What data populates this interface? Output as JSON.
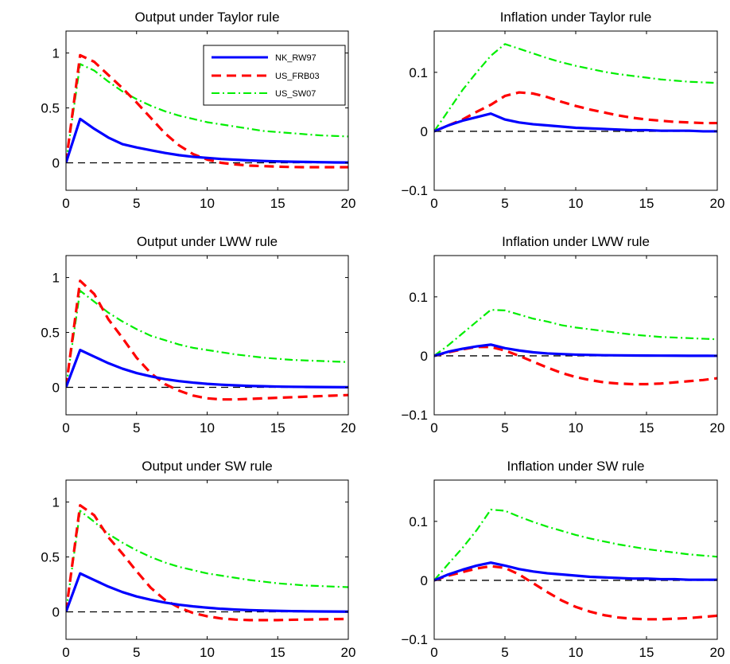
{
  "legend": {
    "position": "top-right of top-left panel",
    "entries": [
      {
        "name": "NK_RW97",
        "color": "#0000ff",
        "style": "solid"
      },
      {
        "name": "US_FRB03",
        "color": "#ff0000",
        "style": "dashed"
      },
      {
        "name": "US_SW07",
        "color": "#00ee00",
        "style": "dash-dot"
      }
    ]
  },
  "chart_data": [
    {
      "type": "line",
      "title": "Output under Taylor rule",
      "xlim": [
        0,
        20
      ],
      "ylim": [
        -0.25,
        1.2
      ],
      "xticks": [
        0,
        5,
        10,
        15,
        20
      ],
      "xtick_labels": [
        "0",
        "5",
        "10",
        "15",
        "20"
      ],
      "yticks": [
        0,
        0.5,
        1
      ],
      "ytick_labels": [
        "0",
        "0.5",
        "1"
      ],
      "grid": false,
      "x": [
        0,
        1,
        2,
        3,
        4,
        5,
        6,
        7,
        8,
        9,
        10,
        11,
        12,
        13,
        14,
        15,
        16,
        17,
        18,
        19,
        20
      ],
      "series": [
        {
          "name": "NK_RW97",
          "color": "#0000ff",
          "style": "solid",
          "values": [
            0,
            0.4,
            0.31,
            0.23,
            0.17,
            0.14,
            0.115,
            0.09,
            0.07,
            0.055,
            0.045,
            0.035,
            0.028,
            0.022,
            0.017,
            0.013,
            0.01,
            0.008,
            0.006,
            0.004,
            0.003
          ]
        },
        {
          "name": "US_FRB03",
          "color": "#ff0000",
          "style": "dashed",
          "values": [
            0,
            0.98,
            0.92,
            0.8,
            0.68,
            0.55,
            0.41,
            0.27,
            0.16,
            0.08,
            0.03,
            0.0,
            -0.015,
            -0.025,
            -0.03,
            -0.035,
            -0.038,
            -0.04,
            -0.04,
            -0.04,
            -0.04
          ]
        },
        {
          "name": "US_SW07",
          "color": "#00ee00",
          "style": "dashdot",
          "values": [
            0,
            0.9,
            0.84,
            0.74,
            0.65,
            0.58,
            0.52,
            0.47,
            0.43,
            0.4,
            0.37,
            0.35,
            0.33,
            0.31,
            0.29,
            0.28,
            0.27,
            0.26,
            0.25,
            0.245,
            0.24
          ]
        },
        {
          "name": "",
          "color": "#000000",
          "style": "dashed",
          "values": [
            0,
            0,
            0,
            0,
            0,
            0,
            0,
            0,
            0,
            0,
            0,
            0,
            0,
            0,
            0,
            0,
            0,
            0,
            0,
            0,
            0
          ]
        }
      ]
    },
    {
      "type": "line",
      "title": "Inflation under Taylor rule",
      "xlim": [
        0,
        20
      ],
      "ylim": [
        -0.1,
        0.17
      ],
      "xticks": [
        0,
        5,
        10,
        15,
        20
      ],
      "xtick_labels": [
        "0",
        "5",
        "10",
        "15",
        "20"
      ],
      "yticks": [
        -0.1,
        0,
        0.1
      ],
      "ytick_labels": [
        "−0.1",
        "0",
        "0.1"
      ],
      "grid": false,
      "x": [
        0,
        1,
        2,
        3,
        4,
        5,
        6,
        7,
        8,
        9,
        10,
        11,
        12,
        13,
        14,
        15,
        16,
        17,
        18,
        19,
        20
      ],
      "series": [
        {
          "name": "NK_RW97",
          "color": "#0000ff",
          "style": "solid",
          "values": [
            0,
            0.01,
            0.018,
            0.024,
            0.03,
            0.02,
            0.015,
            0.012,
            0.01,
            0.008,
            0.006,
            0.005,
            0.004,
            0.003,
            0.002,
            0.002,
            0.001,
            0.001,
            0.001,
            0.0,
            0.0
          ]
        },
        {
          "name": "US_FRB03",
          "color": "#ff0000",
          "style": "dashed",
          "values": [
            0,
            0.01,
            0.02,
            0.033,
            0.045,
            0.06,
            0.066,
            0.064,
            0.058,
            0.05,
            0.043,
            0.037,
            0.032,
            0.027,
            0.023,
            0.02,
            0.018,
            0.016,
            0.015,
            0.014,
            0.014
          ]
        },
        {
          "name": "US_SW07",
          "color": "#00ee00",
          "style": "dashdot",
          "values": [
            0,
            0.035,
            0.07,
            0.1,
            0.128,
            0.148,
            0.14,
            0.132,
            0.124,
            0.117,
            0.111,
            0.106,
            0.101,
            0.097,
            0.094,
            0.091,
            0.088,
            0.086,
            0.084,
            0.083,
            0.082
          ]
        },
        {
          "name": "",
          "color": "#000000",
          "style": "dashed",
          "values": [
            0,
            0,
            0,
            0,
            0,
            0,
            0,
            0,
            0,
            0,
            0,
            0,
            0,
            0,
            0,
            0,
            0,
            0,
            0,
            0,
            0
          ]
        }
      ]
    },
    {
      "type": "line",
      "title": "Output under LWW rule",
      "xlim": [
        0,
        20
      ],
      "ylim": [
        -0.25,
        1.2
      ],
      "xticks": [
        0,
        5,
        10,
        15,
        20
      ],
      "xtick_labels": [
        "0",
        "5",
        "10",
        "15",
        "20"
      ],
      "yticks": [
        0,
        0.5,
        1
      ],
      "ytick_labels": [
        "0",
        "0.5",
        "1"
      ],
      "grid": false,
      "x": [
        0,
        1,
        2,
        3,
        4,
        5,
        6,
        7,
        8,
        9,
        10,
        11,
        12,
        13,
        14,
        15,
        16,
        17,
        18,
        19,
        20
      ],
      "series": [
        {
          "name": "NK_RW97",
          "color": "#0000ff",
          "style": "solid",
          "values": [
            0,
            0.34,
            0.28,
            0.22,
            0.17,
            0.13,
            0.1,
            0.075,
            0.057,
            0.043,
            0.032,
            0.024,
            0.018,
            0.013,
            0.01,
            0.007,
            0.005,
            0.004,
            0.003,
            0.002,
            0.001
          ]
        },
        {
          "name": "US_FRB03",
          "color": "#ff0000",
          "style": "dashed",
          "values": [
            0,
            0.97,
            0.85,
            0.62,
            0.45,
            0.27,
            0.13,
            0.03,
            -0.03,
            -0.075,
            -0.1,
            -0.11,
            -0.11,
            -0.105,
            -0.1,
            -0.095,
            -0.09,
            -0.085,
            -0.08,
            -0.075,
            -0.07
          ]
        },
        {
          "name": "US_SW07",
          "color": "#00ee00",
          "style": "dashdot",
          "values": [
            0,
            0.88,
            0.78,
            0.68,
            0.6,
            0.53,
            0.47,
            0.43,
            0.39,
            0.36,
            0.34,
            0.32,
            0.3,
            0.285,
            0.27,
            0.26,
            0.25,
            0.245,
            0.24,
            0.235,
            0.23
          ]
        },
        {
          "name": "",
          "color": "#000000",
          "style": "dashed",
          "values": [
            0,
            0,
            0,
            0,
            0,
            0,
            0,
            0,
            0,
            0,
            0,
            0,
            0,
            0,
            0,
            0,
            0,
            0,
            0,
            0,
            0
          ]
        }
      ]
    },
    {
      "type": "line",
      "title": "Inflation under LWW rule",
      "xlim": [
        0,
        20
      ],
      "ylim": [
        -0.1,
        0.17
      ],
      "xticks": [
        0,
        5,
        10,
        15,
        20
      ],
      "xtick_labels": [
        "0",
        "5",
        "10",
        "15",
        "20"
      ],
      "yticks": [
        -0.1,
        0,
        0.1
      ],
      "ytick_labels": [
        "−0.1",
        "0",
        "0.1"
      ],
      "grid": false,
      "x": [
        0,
        1,
        2,
        3,
        4,
        5,
        6,
        7,
        8,
        9,
        10,
        11,
        12,
        13,
        14,
        15,
        16,
        17,
        18,
        19,
        20
      ],
      "series": [
        {
          "name": "NK_RW97",
          "color": "#0000ff",
          "style": "solid",
          "values": [
            0,
            0.007,
            0.012,
            0.016,
            0.019,
            0.013,
            0.009,
            0.006,
            0.004,
            0.003,
            0.002,
            0.0015,
            0.001,
            0.0008,
            0.0006,
            0.0004,
            0.0003,
            0.0002,
            0.0001,
            0.0001,
            0.0
          ]
        },
        {
          "name": "US_FRB03",
          "color": "#ff0000",
          "style": "dashed",
          "values": [
            0,
            0.006,
            0.011,
            0.015,
            0.015,
            0.009,
            0.0,
            -0.01,
            -0.02,
            -0.029,
            -0.036,
            -0.041,
            -0.045,
            -0.047,
            -0.048,
            -0.048,
            -0.047,
            -0.045,
            -0.043,
            -0.041,
            -0.038
          ]
        },
        {
          "name": "US_SW07",
          "color": "#00ee00",
          "style": "dashdot",
          "values": [
            0,
            0.018,
            0.038,
            0.058,
            0.078,
            0.077,
            0.07,
            0.063,
            0.058,
            0.052,
            0.048,
            0.045,
            0.042,
            0.039,
            0.036,
            0.034,
            0.032,
            0.031,
            0.03,
            0.029,
            0.028
          ]
        },
        {
          "name": "",
          "color": "#000000",
          "style": "dashed",
          "values": [
            0,
            0,
            0,
            0,
            0,
            0,
            0,
            0,
            0,
            0,
            0,
            0,
            0,
            0,
            0,
            0,
            0,
            0,
            0,
            0,
            0
          ]
        }
      ]
    },
    {
      "type": "line",
      "title": "Output under SW rule",
      "xlim": [
        0,
        20
      ],
      "ylim": [
        -0.25,
        1.2
      ],
      "xticks": [
        0,
        5,
        10,
        15,
        20
      ],
      "xtick_labels": [
        "0",
        "5",
        "10",
        "15",
        "20"
      ],
      "yticks": [
        0,
        0.5,
        1
      ],
      "ytick_labels": [
        "0",
        "0.5",
        "1"
      ],
      "grid": false,
      "x": [
        0,
        1,
        2,
        3,
        4,
        5,
        6,
        7,
        8,
        9,
        10,
        11,
        12,
        13,
        14,
        15,
        16,
        17,
        18,
        19,
        20
      ],
      "series": [
        {
          "name": "NK_RW97",
          "color": "#0000ff",
          "style": "solid",
          "values": [
            0,
            0.35,
            0.29,
            0.23,
            0.18,
            0.14,
            0.11,
            0.085,
            0.065,
            0.05,
            0.038,
            0.028,
            0.021,
            0.016,
            0.012,
            0.009,
            0.007,
            0.005,
            0.004,
            0.003,
            0.002
          ]
        },
        {
          "name": "US_FRB03",
          "color": "#ff0000",
          "style": "dashed",
          "values": [
            0,
            0.97,
            0.88,
            0.68,
            0.53,
            0.37,
            0.22,
            0.11,
            0.04,
            -0.01,
            -0.04,
            -0.06,
            -0.07,
            -0.075,
            -0.075,
            -0.075,
            -0.072,
            -0.07,
            -0.068,
            -0.066,
            -0.065
          ]
        },
        {
          "name": "US_SW07",
          "color": "#00ee00",
          "style": "dashdot",
          "values": [
            0,
            0.92,
            0.82,
            0.71,
            0.63,
            0.56,
            0.5,
            0.45,
            0.41,
            0.38,
            0.35,
            0.33,
            0.31,
            0.29,
            0.275,
            0.26,
            0.25,
            0.24,
            0.235,
            0.23,
            0.225
          ]
        },
        {
          "name": "",
          "color": "#000000",
          "style": "dashed",
          "values": [
            0,
            0,
            0,
            0,
            0,
            0,
            0,
            0,
            0,
            0,
            0,
            0,
            0,
            0,
            0,
            0,
            0,
            0,
            0,
            0,
            0
          ]
        }
      ]
    },
    {
      "type": "line",
      "title": "Inflation under SW rule",
      "xlim": [
        0,
        20
      ],
      "ylim": [
        -0.1,
        0.17
      ],
      "xticks": [
        0,
        5,
        10,
        15,
        20
      ],
      "xtick_labels": [
        "0",
        "5",
        "10",
        "15",
        "20"
      ],
      "yticks": [
        -0.1,
        0,
        0.1
      ],
      "ytick_labels": [
        "−0.1",
        "0",
        "0.1"
      ],
      "grid": false,
      "x": [
        0,
        1,
        2,
        3,
        4,
        5,
        6,
        7,
        8,
        9,
        10,
        11,
        12,
        13,
        14,
        15,
        16,
        17,
        18,
        19,
        20
      ],
      "series": [
        {
          "name": "NK_RW97",
          "color": "#0000ff",
          "style": "solid",
          "values": [
            0,
            0.01,
            0.018,
            0.025,
            0.03,
            0.025,
            0.019,
            0.015,
            0.012,
            0.01,
            0.008,
            0.006,
            0.005,
            0.004,
            0.003,
            0.003,
            0.002,
            0.002,
            0.001,
            0.001,
            0.001
          ]
        },
        {
          "name": "US_FRB03",
          "color": "#ff0000",
          "style": "dashed",
          "values": [
            0,
            0.008,
            0.014,
            0.02,
            0.024,
            0.021,
            0.01,
            -0.005,
            -0.02,
            -0.034,
            -0.045,
            -0.053,
            -0.059,
            -0.063,
            -0.065,
            -0.066,
            -0.066,
            -0.065,
            -0.064,
            -0.062,
            -0.06
          ]
        },
        {
          "name": "US_SW07",
          "color": "#00ee00",
          "style": "dashdot",
          "values": [
            0,
            0.028,
            0.055,
            0.085,
            0.12,
            0.118,
            0.108,
            0.099,
            0.091,
            0.084,
            0.077,
            0.071,
            0.066,
            0.061,
            0.057,
            0.053,
            0.05,
            0.047,
            0.044,
            0.042,
            0.04
          ]
        },
        {
          "name": "",
          "color": "#000000",
          "style": "dashed",
          "values": [
            0,
            0,
            0,
            0,
            0,
            0,
            0,
            0,
            0,
            0,
            0,
            0,
            0,
            0,
            0,
            0,
            0,
            0,
            0,
            0,
            0
          ]
        }
      ]
    }
  ]
}
